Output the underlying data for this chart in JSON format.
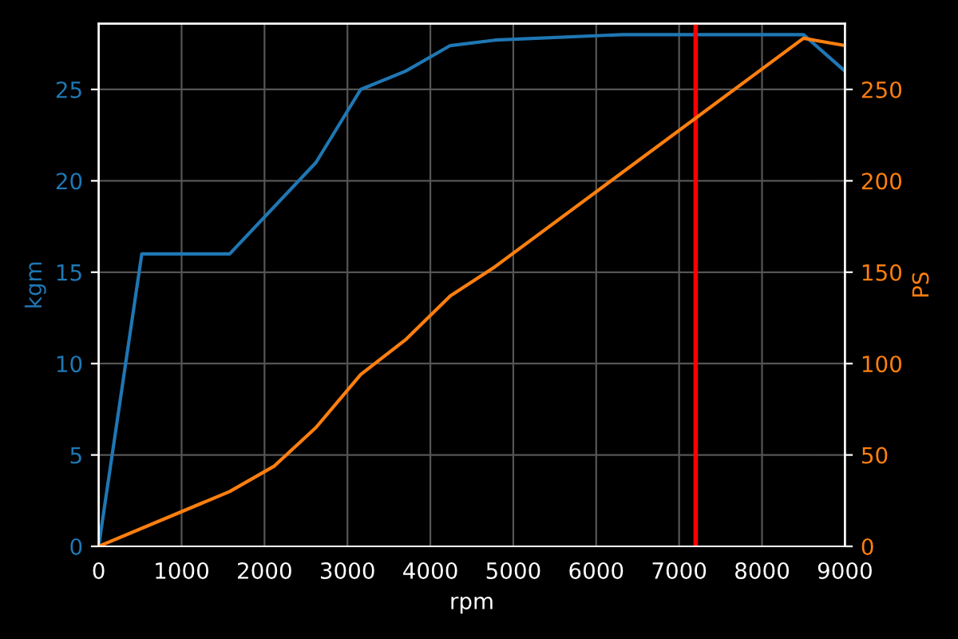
{
  "chart_data": {
    "type": "line",
    "xlabel": "rpm",
    "ylabel": "kgm",
    "y2label": "PS",
    "x": [
      0,
      520,
      1580,
      2620,
      3160,
      3700,
      4240,
      4780,
      6320,
      8500,
      9000
    ],
    "series": [
      {
        "color": "#1f77b4",
        "values": [
          0,
          16,
          16,
          21,
          25,
          26,
          27.4,
          27.7,
          28,
          28,
          26
        ]
      },
      {
        "color": "#ff7f0e",
        "axis": "y2",
        "x": [
          0,
          1580,
          2120,
          2620,
          3160,
          3700,
          4240,
          4780,
          8500,
          9000
        ],
        "values": [
          0,
          30,
          44,
          65,
          94,
          113,
          137,
          153,
          278,
          274
        ]
      }
    ],
    "xlim": [
      0,
      9000
    ],
    "xticks": [
      0,
      1000,
      2000,
      3000,
      4000,
      5000,
      6000,
      7000,
      8000,
      9000
    ],
    "ylim": [
      0,
      28.6
    ],
    "yticks": [
      0,
      5,
      10,
      15,
      20,
      25
    ],
    "y2lim": [
      0,
      286
    ],
    "y2ticks": [
      0,
      50,
      100,
      150,
      200,
      250
    ],
    "ref_lines": [
      {
        "axis": "x",
        "value": 7200,
        "color": "#ff0000"
      }
    ],
    "grid": true
  }
}
